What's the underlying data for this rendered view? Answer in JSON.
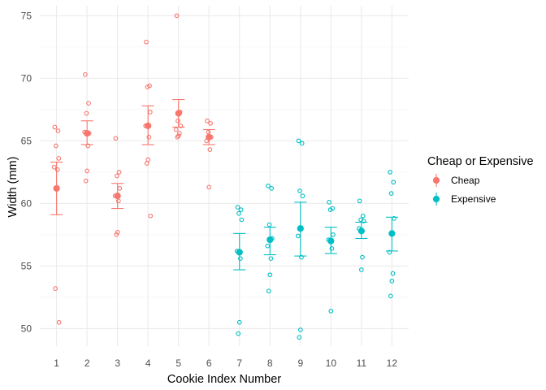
{
  "chart_data": {
    "type": "scatter",
    "title": "",
    "xlabel": "Cookie Index Number",
    "ylabel": "Width (mm)",
    "x_ticks": [
      1,
      2,
      3,
      4,
      5,
      6,
      7,
      8,
      9,
      10,
      11,
      12
    ],
    "y_ticks": [
      50,
      55,
      60,
      65,
      70,
      75
    ],
    "xlim": [
      0.45,
      12.55
    ],
    "ylim": [
      48.6,
      75.8
    ],
    "grid": true,
    "legend": {
      "title": "Cheap or Expensive",
      "placement": "right",
      "entries": [
        "Cheap",
        "Expensive"
      ]
    },
    "colors": {
      "Cheap": "#F8766D",
      "Expensive": "#00BFC4"
    },
    "series": [
      {
        "name": "Cheap",
        "cookies": [
          {
            "x": 1,
            "mean": 61.2,
            "err_low": 59.1,
            "err_high": 63.3,
            "points": [
              66.1,
              65.8,
              64.6,
              63.6,
              62.9,
              62.7,
              61.2,
              53.2,
              50.5
            ]
          },
          {
            "x": 2,
            "mean": 65.6,
            "err_low": 64.7,
            "err_high": 66.6,
            "points": [
              70.3,
              68.0,
              67.2,
              65.6,
              65.7,
              64.6,
              62.6,
              61.8
            ]
          },
          {
            "x": 3,
            "mean": 60.6,
            "err_low": 59.6,
            "err_high": 61.6,
            "points": [
              65.2,
              62.5,
              62.2,
              61.2,
              60.6,
              60.2,
              57.7,
              57.5
            ]
          },
          {
            "x": 4,
            "mean": 66.2,
            "err_low": 64.7,
            "err_high": 67.8,
            "points": [
              72.9,
              69.4,
              69.3,
              67.3,
              66.2,
              65.3,
              63.5,
              63.2,
              59.0
            ]
          },
          {
            "x": 5,
            "mean": 67.2,
            "err_low": 66.1,
            "err_high": 68.3,
            "points": [
              75.0,
              67.3,
              66.6,
              66.2,
              65.9,
              65.6,
              65.4,
              65.3
            ]
          },
          {
            "x": 6,
            "mean": 65.3,
            "err_low": 64.7,
            "err_high": 65.9,
            "points": [
              66.6,
              66.4,
              65.7,
              65.3,
              65.0,
              64.3,
              61.3
            ]
          }
        ]
      },
      {
        "name": "Expensive",
        "cookies": [
          {
            "x": 7,
            "mean": 56.1,
            "err_low": 54.7,
            "err_high": 57.6,
            "points": [
              59.7,
              59.5,
              59.2,
              58.7,
              56.2,
              55.6,
              50.5,
              49.6
            ]
          },
          {
            "x": 8,
            "mean": 57.1,
            "err_low": 55.9,
            "err_high": 58.1,
            "points": [
              61.4,
              61.2,
              58.3,
              57.2,
              56.6,
              55.6,
              54.3,
              53.0
            ]
          },
          {
            "x": 9,
            "mean": 58.0,
            "err_low": 55.8,
            "err_high": 60.1,
            "points": [
              65.0,
              64.8,
              61.0,
              60.6,
              57.4,
              55.7,
              49.9,
              49.3
            ]
          },
          {
            "x": 10,
            "mean": 57.0,
            "err_low": 56.0,
            "err_high": 58.1,
            "points": [
              60.1,
              59.6,
              59.5,
              57.5,
              57.1,
              56.4,
              51.4
            ]
          },
          {
            "x": 11,
            "mean": 57.8,
            "err_low": 57.2,
            "err_high": 58.5,
            "points": [
              60.2,
              59.0,
              58.7,
              58.6,
              58.0,
              55.7,
              54.7
            ]
          },
          {
            "x": 12,
            "mean": 57.6,
            "err_low": 56.2,
            "err_high": 58.9,
            "points": [
              62.5,
              61.7,
              60.8,
              58.8,
              56.1,
              54.4,
              53.8,
              52.6
            ]
          }
        ]
      }
    ]
  }
}
